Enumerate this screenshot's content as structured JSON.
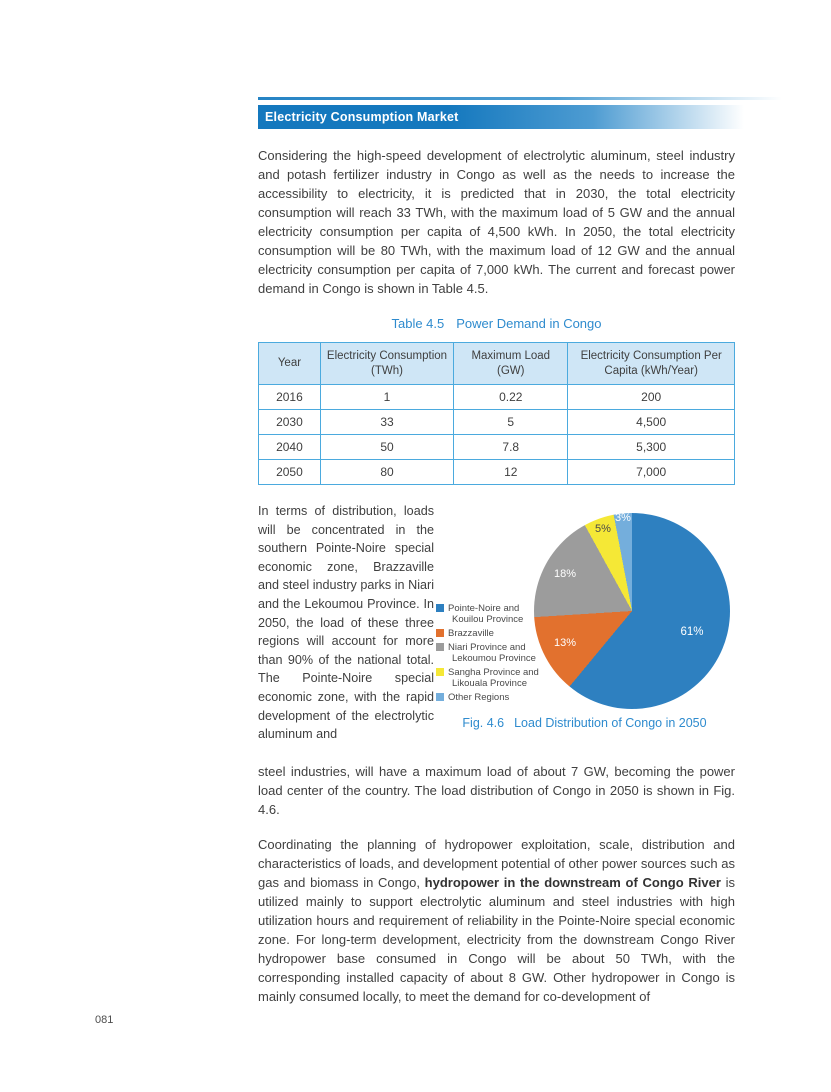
{
  "page": {
    "number": "081"
  },
  "header": {
    "title": "Electricity Consumption Market"
  },
  "paragraphs": {
    "intro": "Considering the high-speed development of electrolytic aluminum, steel industry and potash fertilizer industry in Congo as well as the needs to increase the accessibility to electricity, it is predicted that in 2030, the total electricity consumption will reach 33 TWh, with the maximum load of 5 GW and the annual electricity consumption per capita of 4,500 kWh. In 2050, the total electricity consumption will be 80 TWh, with the maximum load of 12 GW and the annual electricity consumption per capita of 7,000 kWh. The current and forecast power demand in Congo is shown in Table 4.5.",
    "figure_side": "In terms of distribution, loads will be concentrated in the southern Pointe-Noire special economic zone, Brazzaville and steel industry parks in Niari and the Lekoumou Province. In 2050, the load of these three regions will account for more than 90% of the national total. The Pointe-Noire special economic zone, with the rapid development of the electrolytic aluminum and",
    "figure_continuation": "steel industries, will have a maximum load of about 7 GW, becoming the power load center of the country. The load distribution of Congo in 2050 is shown in Fig. 4.6.",
    "closing_before_bold": "Coordinating the planning of hydropower exploitation, scale, distribution and characteristics of loads, and development potential of other power sources such as gas and biomass in Congo, ",
    "closing_bold": "hydropower in the downstream of Congo River",
    "closing_after_bold": " is utilized mainly to support electrolytic aluminum and steel industries with high utilization hours and requirement of reliability in the Pointe-Noire special economic zone. For long-term development, electricity from the downstream Congo River hydropower base consumed in Congo will be about 50 TWh, with the corresponding installed capacity of about 8 GW. Other hydropower in Congo is mainly consumed locally, to meet the demand for co-development of"
  },
  "table": {
    "title_label": "Table 4.5",
    "title_text": "Power Demand in Congo",
    "headers": [
      "Year",
      "Electricity Consumption\n(TWh)",
      "Maximum Load\n(GW)",
      "Electricity Consumption Per\nCapita (kWh/Year)"
    ],
    "rows": [
      [
        "2016",
        "1",
        "0.22",
        "200"
      ],
      [
        "2030",
        "33",
        "5",
        "4,500"
      ],
      [
        "2040",
        "50",
        "7.8",
        "5,300"
      ],
      [
        "2050",
        "80",
        "12",
        "7,000"
      ]
    ]
  },
  "chart_data": {
    "type": "pie",
    "fig_label": "Fig. 4.6",
    "title": "Load Distribution of Congo in 2050",
    "start_angle_deg": 0,
    "direction": "clockwise",
    "legend_position": "left",
    "slices": [
      {
        "label": "Pointe-Noire and Kouilou Province",
        "value": 61,
        "pct_label": "61%",
        "color": "#2e80c0",
        "swatch": "background:#2e80c0"
      },
      {
        "label": "Brazzaville",
        "value": 13,
        "pct_label": "13%",
        "color": "#e2712e",
        "swatch": "background:#e2712e"
      },
      {
        "label": "Niari Province and Lekoumou Province",
        "value": 18,
        "pct_label": "18%",
        "color": "#9c9c9c",
        "swatch": "background:#9c9c9c"
      },
      {
        "label": "Sangha Province and Likouala Province",
        "value": 5,
        "pct_label": "5%",
        "color": "#f5e836",
        "swatch": "background:#f5e836"
      },
      {
        "label": "Other Regions",
        "value": 3,
        "pct_label": "3%",
        "color": "#74aedc",
        "swatch": "background:#74aedc"
      }
    ],
    "draw_order_clockwise_from_top": [
      61,
      13,
      18,
      5,
      3
    ]
  }
}
